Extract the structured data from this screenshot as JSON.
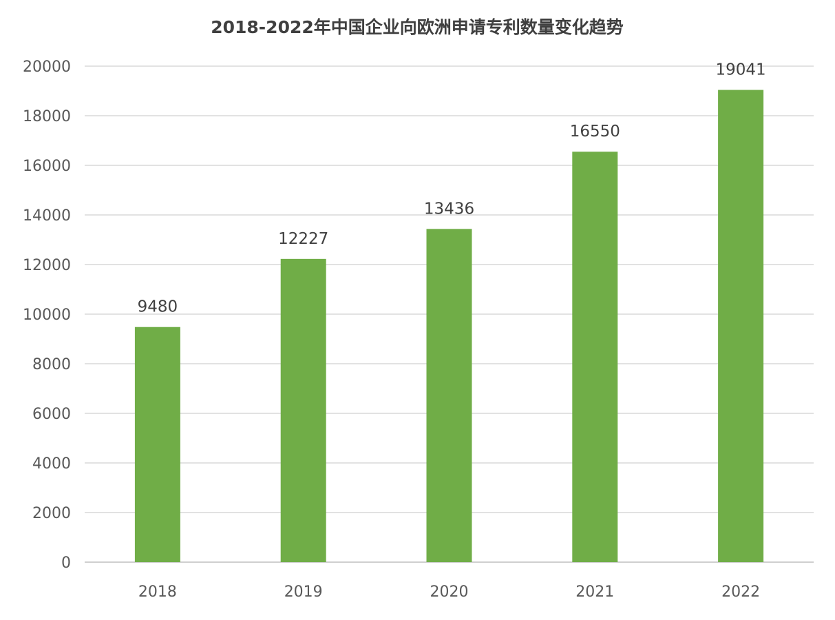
{
  "chart_data": {
    "type": "bar",
    "title": "2018-2022年中国企业向欧洲申请专利数量变化趋势",
    "xlabel": "",
    "ylabel": "",
    "categories": [
      "2018",
      "2019",
      "2020",
      "2021",
      "2022"
    ],
    "series": [
      {
        "values": [
          9480,
          12227,
          13436,
          16550,
          19041
        ],
        "color": "#70ad47"
      }
    ],
    "data_labels": [
      "9480",
      "12227",
      "13436",
      "16550",
      "19041"
    ],
    "ylim": [
      0,
      20000
    ],
    "yticks": [
      0,
      2000,
      4000,
      6000,
      8000,
      10000,
      12000,
      14000,
      16000,
      18000,
      20000
    ],
    "ytick_labels": [
      "0",
      "2000",
      "4000",
      "6000",
      "8000",
      "10000",
      "12000",
      "14000",
      "16000",
      "18000",
      "20000"
    ],
    "grid": true,
    "legend": "none",
    "gridline_color": "#d9d9d9"
  }
}
